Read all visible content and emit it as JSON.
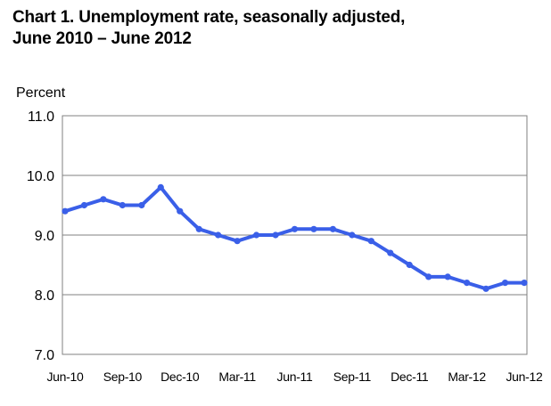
{
  "title_line1": "Chart 1. Unemployment rate, seasonally adjusted,",
  "title_line2": "June 2010 – June 2012",
  "chart_data": {
    "type": "line",
    "title": "Chart 1. Unemployment rate, seasonally adjusted, June 2010 – June 2012",
    "ylabel": "Percent",
    "xlabel": "",
    "ylim": [
      7.0,
      11.0
    ],
    "yticks": [
      7.0,
      8.0,
      9.0,
      10.0,
      11.0
    ],
    "ytick_labels": [
      "7.0",
      "8.0",
      "9.0",
      "10.0",
      "11.0"
    ],
    "x": [
      "Jun-10",
      "Jul-10",
      "Aug-10",
      "Sep-10",
      "Oct-10",
      "Nov-10",
      "Dec-10",
      "Jan-11",
      "Feb-11",
      "Mar-11",
      "Apr-11",
      "May-11",
      "Jun-11",
      "Jul-11",
      "Aug-11",
      "Sep-11",
      "Oct-11",
      "Nov-11",
      "Dec-11",
      "Jan-12",
      "Feb-12",
      "Mar-12",
      "Apr-12",
      "May-12",
      "Jun-12"
    ],
    "xtick_labels": [
      "Jun-10",
      "Sep-10",
      "Dec-10",
      "Mar-11",
      "Jun-11",
      "Sep-11",
      "Dec-11",
      "Mar-12",
      "Jun-12"
    ],
    "series": [
      {
        "name": "Unemployment rate",
        "color": "#3a5fe8",
        "values": [
          9.4,
          9.5,
          9.6,
          9.5,
          9.5,
          9.8,
          9.4,
          9.1,
          9.0,
          8.9,
          9.0,
          9.0,
          9.1,
          9.1,
          9.1,
          9.0,
          8.9,
          8.7,
          8.5,
          8.3,
          8.3,
          8.2,
          8.1,
          8.2,
          8.2
        ]
      }
    ],
    "grid": true
  }
}
